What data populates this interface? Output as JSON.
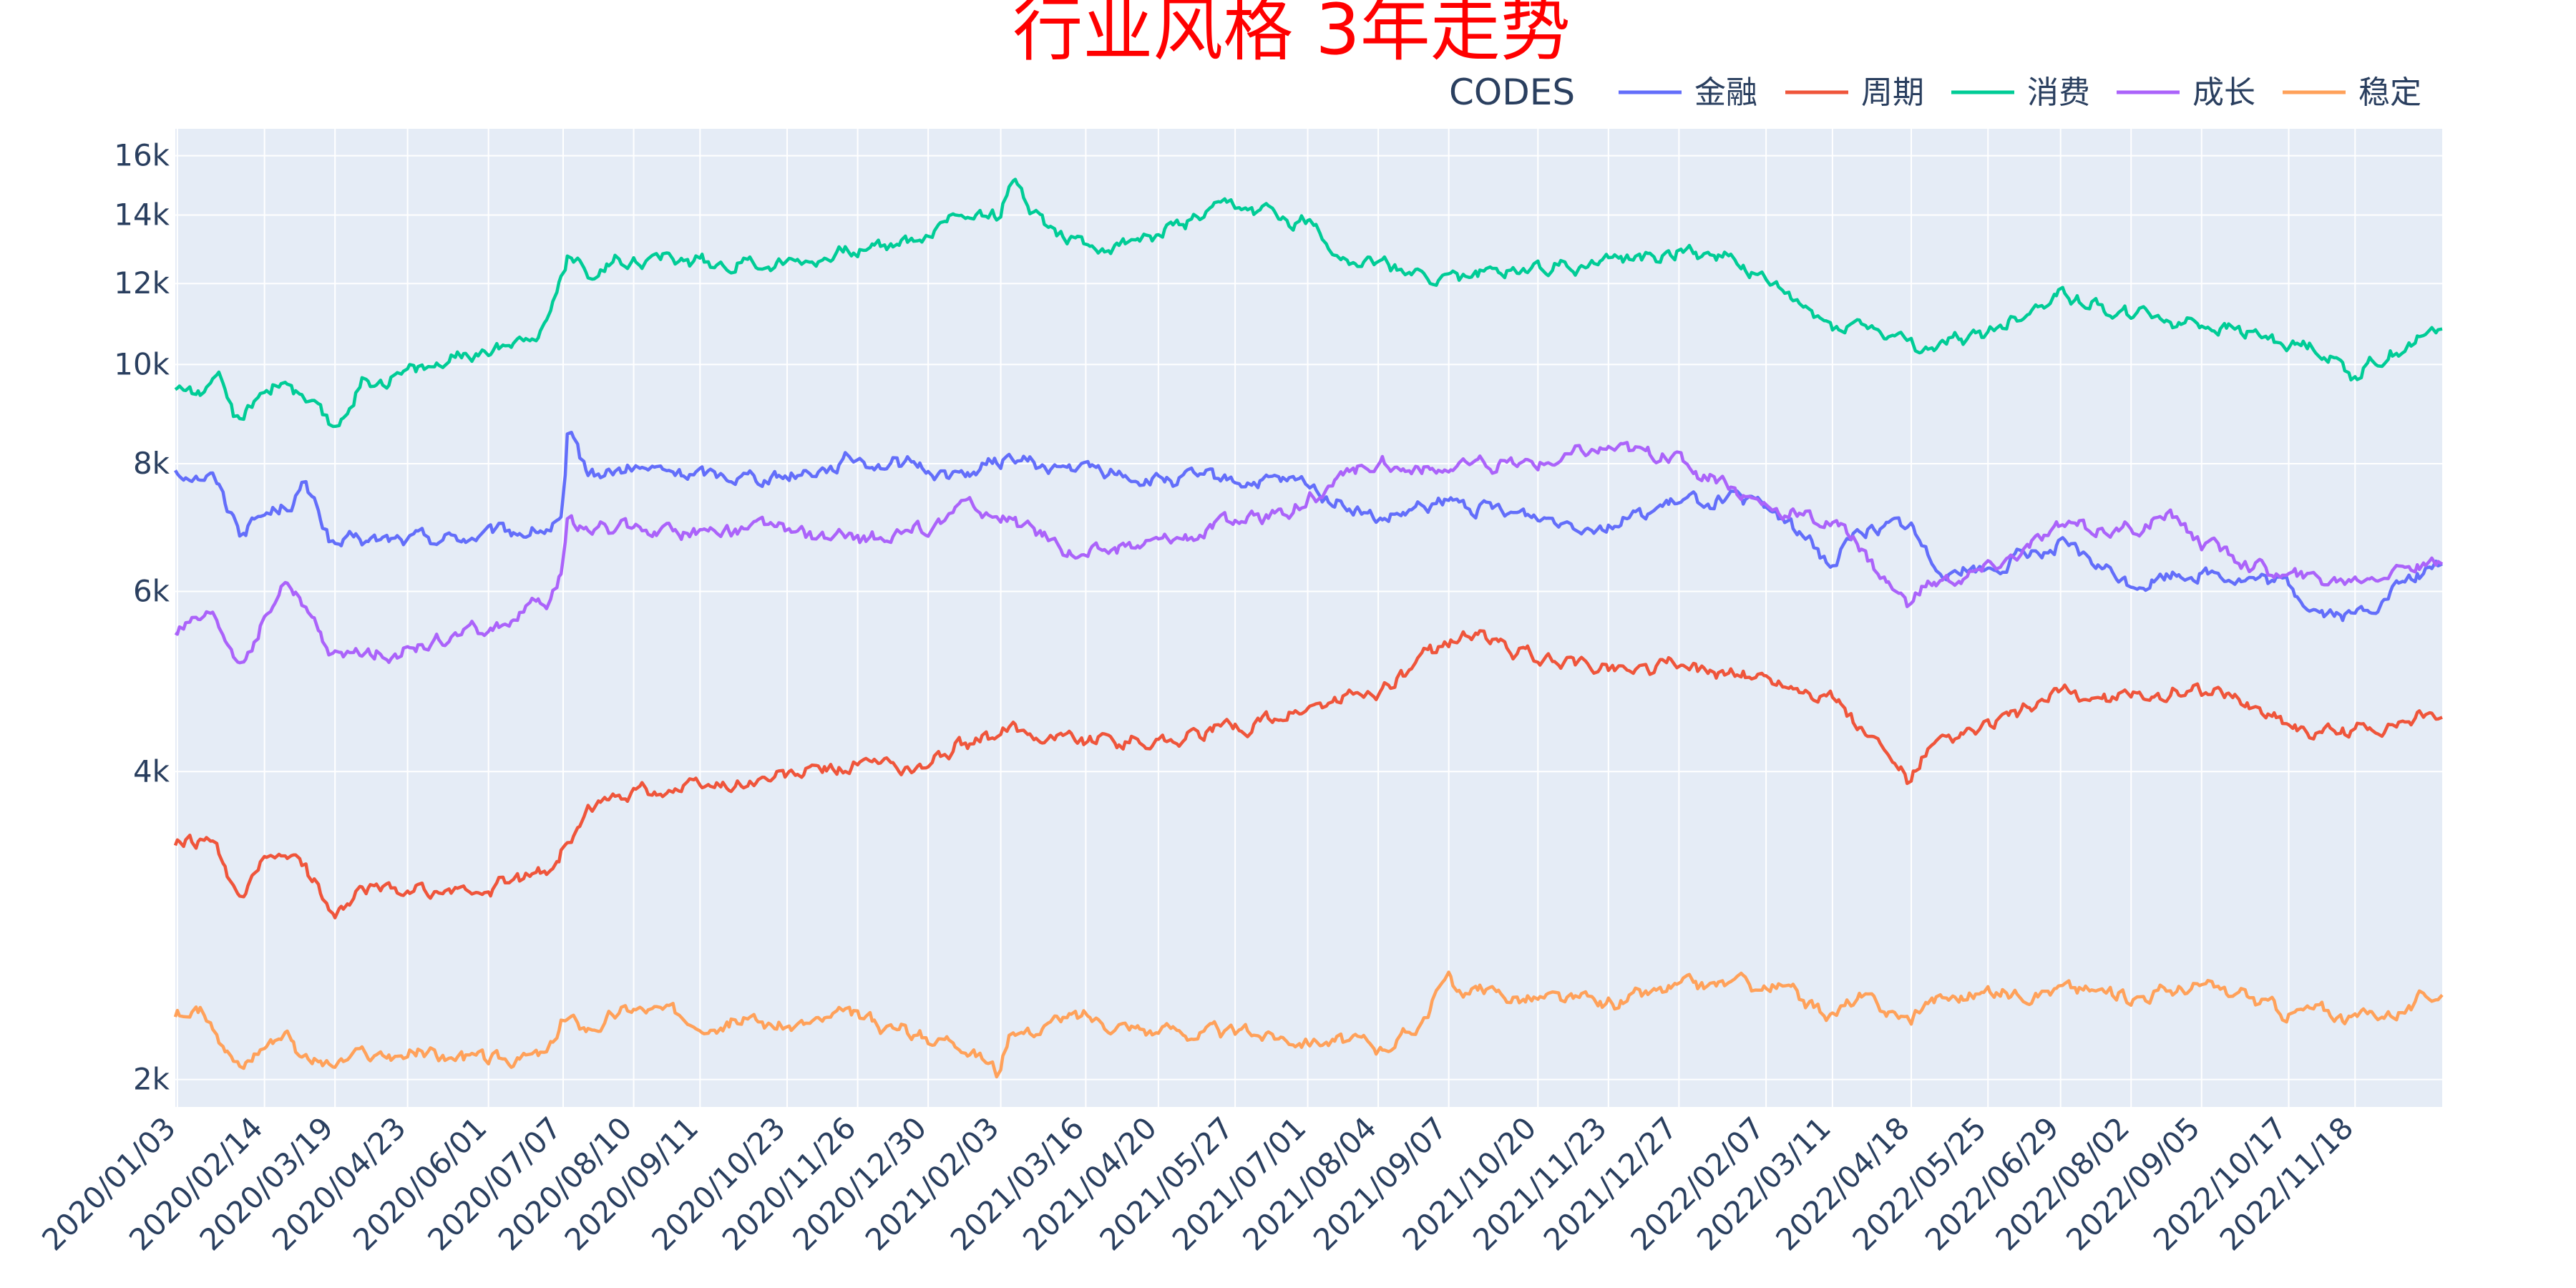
{
  "chart_data": {
    "type": "line",
    "title": "行业风格 3年走势",
    "xlabel": "",
    "ylabel": "",
    "y_scale": "log",
    "ylim": [
      1880,
      17000
    ],
    "y_ticks": [
      2000,
      4000,
      6000,
      8000,
      10000,
      12000,
      14000,
      16000
    ],
    "y_tick_labels": [
      "2k",
      "4k",
      "6k",
      "8k",
      "10k",
      "12k",
      "14k",
      "16k"
    ],
    "x_range": [
      "2020-01-02",
      "2022-12-30"
    ],
    "x_tick_labels": [
      "2020/01/03",
      "2020/02/14",
      "2020/03/19",
      "2020/04/23",
      "2020/06/01",
      "2020/07/07",
      "2020/08/10",
      "2020/09/11",
      "2020/10/23",
      "2020/11/26",
      "2020/12/30",
      "2021/02/03",
      "2021/03/16",
      "2021/04/20",
      "2021/05/27",
      "2021/07/01",
      "2021/08/04",
      "2021/09/07",
      "2021/10/20",
      "2021/11/23",
      "2021/12/27",
      "2022/02/07",
      "2022/03/11",
      "2022/04/18",
      "2022/05/25",
      "2022/06/29",
      "2022/08/02",
      "2022/09/05",
      "2022/10/17",
      "2022/11/18"
    ],
    "grid": true,
    "legend": {
      "title": "CODES",
      "placement": "top-right"
    },
    "series": [
      {
        "name": "金融",
        "color": "#636efa",
        "x": [
          "2020-01-02",
          "2020-01-20",
          "2020-02-03",
          "2020-02-12",
          "2020-02-25",
          "2020-03-05",
          "2020-03-19",
          "2020-04-01",
          "2020-05-01",
          "2020-06-01",
          "2020-06-30",
          "2020-07-07",
          "2020-07-10",
          "2020-07-20",
          "2020-08-10",
          "2020-09-11",
          "2020-10-23",
          "2020-11-26",
          "2020-12-30",
          "2021-01-15",
          "2021-02-10",
          "2021-02-25",
          "2021-03-16",
          "2021-04-20",
          "2021-05-27",
          "2021-07-01",
          "2021-07-20",
          "2021-08-04",
          "2021-09-07",
          "2021-10-20",
          "2021-11-23",
          "2021-12-27",
          "2022-01-20",
          "2022-02-15",
          "2022-03-11",
          "2022-03-25",
          "2022-04-18",
          "2022-04-28",
          "2022-05-25",
          "2022-06-29",
          "2022-08-02",
          "2022-09-05",
          "2022-10-17",
          "2022-11-01",
          "2022-11-18",
          "2022-12-15",
          "2022-12-30"
        ],
        "y": [
          7900,
          7800,
          6900,
          7100,
          7300,
          7600,
          6650,
          6700,
          6750,
          6800,
          6900,
          7000,
          8400,
          7800,
          7900,
          7800,
          7800,
          8100,
          7900,
          7800,
          8100,
          7900,
          7900,
          7700,
          7700,
          7600,
          7300,
          7000,
          7300,
          7100,
          7000,
          7300,
          7400,
          7100,
          6400,
          6900,
          6950,
          6400,
          6300,
          6650,
          6100,
          6300,
          6050,
          5750,
          5650,
          6150,
          6400
        ]
      },
      {
        "name": "周期",
        "color": "#ef553b",
        "x": [
          "2020-01-02",
          "2020-01-20",
          "2020-02-03",
          "2020-02-12",
          "2020-02-25",
          "2020-03-05",
          "2020-03-19",
          "2020-04-01",
          "2020-05-01",
          "2020-06-01",
          "2020-06-30",
          "2020-07-07",
          "2020-07-20",
          "2020-08-10",
          "2020-09-11",
          "2020-10-23",
          "2020-11-26",
          "2020-12-30",
          "2021-01-15",
          "2021-02-03",
          "2021-02-10",
          "2021-03-16",
          "2021-04-20",
          "2021-05-27",
          "2021-07-01",
          "2021-07-20",
          "2021-08-04",
          "2021-09-07",
          "2021-09-14",
          "2021-10-20",
          "2021-11-23",
          "2021-12-27",
          "2022-01-20",
          "2022-02-15",
          "2022-03-11",
          "2022-03-25",
          "2022-04-18",
          "2022-04-26",
          "2022-05-25",
          "2022-06-29",
          "2022-08-02",
          "2022-09-05",
          "2022-10-17",
          "2022-11-01",
          "2022-11-18",
          "2022-12-15",
          "2022-12-30"
        ],
        "y": [
          3400,
          3400,
          2950,
          3200,
          3350,
          3200,
          2950,
          3050,
          3050,
          3050,
          3200,
          3350,
          3650,
          3850,
          3850,
          3950,
          4050,
          4050,
          4250,
          4300,
          4400,
          4300,
          4300,
          4400,
          4600,
          4700,
          4800,
          5300,
          5500,
          5150,
          5050,
          5100,
          5000,
          4900,
          4750,
          4400,
          3900,
          4150,
          4400,
          4750,
          4700,
          4850,
          4500,
          4350,
          4400,
          4500,
          4550
        ]
      },
      {
        "name": "消费",
        "color": "#00cc96",
        "x": [
          "2020-01-02",
          "2020-01-20",
          "2020-01-23",
          "2020-02-03",
          "2020-02-12",
          "2020-02-25",
          "2020-03-05",
          "2020-03-19",
          "2020-04-01",
          "2020-05-01",
          "2020-06-01",
          "2020-06-30",
          "2020-07-07",
          "2020-07-10",
          "2020-07-20",
          "2020-08-10",
          "2020-09-11",
          "2020-10-23",
          "2020-11-26",
          "2020-12-30",
          "2021-01-15",
          "2021-02-03",
          "2021-02-10",
          "2021-02-25",
          "2021-03-16",
          "2021-04-20",
          "2021-05-27",
          "2021-07-01",
          "2021-07-20",
          "2021-08-04",
          "2021-09-07",
          "2021-10-20",
          "2021-11-23",
          "2021-12-27",
          "2022-01-20",
          "2022-02-15",
          "2022-03-11",
          "2022-03-25",
          "2022-04-18",
          "2022-04-26",
          "2022-05-25",
          "2022-06-29",
          "2022-08-02",
          "2022-09-05",
          "2022-10-17",
          "2022-11-01",
          "2022-11-18",
          "2022-12-15",
          "2022-12-30"
        ],
        "y": [
          9500,
          9400,
          9600,
          8700,
          9400,
          9700,
          9200,
          8600,
          9600,
          9900,
          10300,
          11000,
          12300,
          12800,
          12400,
          12800,
          12600,
          12600,
          12900,
          13400,
          14100,
          14100,
          15000,
          13800,
          13000,
          13400,
          14200,
          13800,
          12800,
          12500,
          12100,
          12500,
          12600,
          12900,
          12800,
          11700,
          10900,
          11000,
          10400,
          10400,
          10700,
          11800,
          11200,
          11000,
          10500,
          10400,
          9800,
          10500,
          10800
        ]
      },
      {
        "name": "成长",
        "color": "#ab63fa",
        "x": [
          "2020-01-02",
          "2020-01-20",
          "2020-02-03",
          "2020-02-12",
          "2020-02-25",
          "2020-03-05",
          "2020-03-19",
          "2020-04-01",
          "2020-05-01",
          "2020-06-01",
          "2020-06-30",
          "2020-07-07",
          "2020-07-10",
          "2020-07-20",
          "2020-08-10",
          "2020-09-11",
          "2020-10-23",
          "2020-11-26",
          "2020-12-30",
          "2021-01-15",
          "2021-02-10",
          "2021-02-25",
          "2021-03-16",
          "2021-04-20",
          "2021-05-27",
          "2021-07-01",
          "2021-08-04",
          "2021-08-20",
          "2021-09-07",
          "2021-10-20",
          "2021-11-23",
          "2021-12-27",
          "2022-01-20",
          "2022-02-15",
          "2022-03-11",
          "2022-03-25",
          "2022-04-18",
          "2022-04-26",
          "2022-05-25",
          "2022-06-29",
          "2022-08-02",
          "2022-08-25",
          "2022-09-05",
          "2022-10-17",
          "2022-11-01",
          "2022-11-18",
          "2022-12-15",
          "2022-12-30"
        ],
        "y": [
          5500,
          5600,
          5100,
          5500,
          6100,
          5800,
          5150,
          5200,
          5300,
          5500,
          5850,
          6200,
          7100,
          6900,
          6900,
          6900,
          6900,
          6700,
          6900,
          7300,
          7000,
          6800,
          6500,
          6700,
          7000,
          7300,
          8100,
          7900,
          7900,
          8000,
          8300,
          8100,
          7600,
          7200,
          7000,
          6600,
          5800,
          6100,
          6300,
          6900,
          6900,
          7100,
          6700,
          6200,
          6150,
          6200,
          6400,
          6300
        ]
      },
      {
        "name": "稳定",
        "color": "#ffa15a",
        "x": [
          "2020-01-02",
          "2020-01-20",
          "2020-02-03",
          "2020-02-12",
          "2020-02-25",
          "2020-03-05",
          "2020-03-19",
          "2020-04-01",
          "2020-05-01",
          "2020-06-01",
          "2020-06-30",
          "2020-07-07",
          "2020-07-20",
          "2020-08-10",
          "2020-09-11",
          "2020-10-23",
          "2020-11-26",
          "2020-12-30",
          "2021-01-15",
          "2021-02-03",
          "2021-02-10",
          "2021-03-16",
          "2021-04-20",
          "2021-05-27",
          "2021-07-01",
          "2021-07-20",
          "2021-08-04",
          "2021-08-20",
          "2021-09-07",
          "2021-09-14",
          "2021-10-20",
          "2021-11-23",
          "2021-12-27",
          "2022-01-20",
          "2022-02-15",
          "2022-03-11",
          "2022-03-25",
          "2022-04-18",
          "2022-04-26",
          "2022-05-25",
          "2022-06-29",
          "2022-08-02",
          "2022-09-05",
          "2022-10-17",
          "2022-11-01",
          "2022-11-18",
          "2022-12-15",
          "2022-12-30"
        ],
        "y": [
          2320,
          2310,
          2050,
          2150,
          2250,
          2100,
          2060,
          2100,
          2120,
          2080,
          2110,
          2290,
          2250,
          2350,
          2300,
          2260,
          2290,
          2200,
          2200,
          2040,
          2220,
          2300,
          2230,
          2220,
          2200,
          2180,
          2160,
          2220,
          2500,
          2450,
          2400,
          2360,
          2460,
          2480,
          2450,
          2320,
          2400,
          2290,
          2400,
          2430,
          2460,
          2420,
          2470,
          2330,
          2340,
          2300,
          2360,
          2450
        ]
      }
    ]
  }
}
